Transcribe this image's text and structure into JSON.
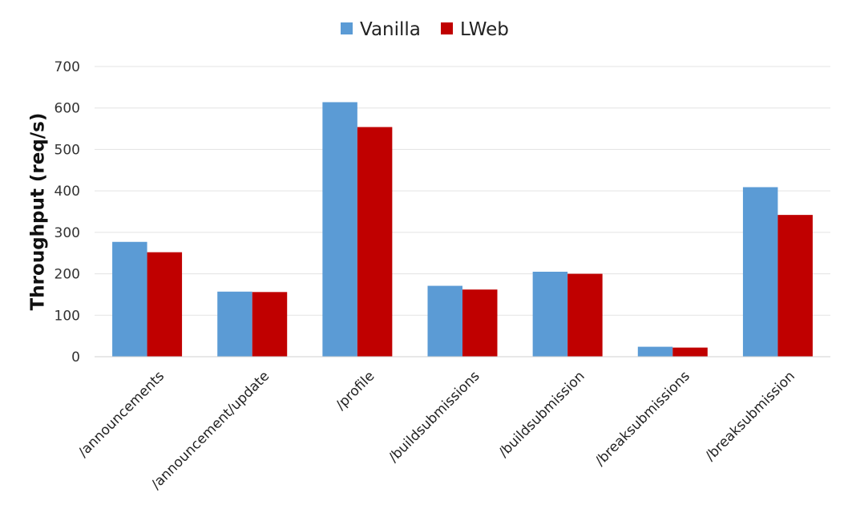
{
  "chart_data": {
    "type": "bar",
    "categories": [
      "/announcements",
      "/announcement/update",
      "/profile",
      "/buildsubmissions",
      "/buildsubmission",
      "/breaksubmissions",
      "/breaksubmission"
    ],
    "series": [
      {
        "name": "Vanilla",
        "color": "#5b9bd5",
        "values": [
          277,
          157,
          614,
          171,
          205,
          24,
          409
        ]
      },
      {
        "name": "LWeb",
        "color": "#c00000",
        "values": [
          252,
          156,
          554,
          162,
          200,
          22,
          342
        ]
      }
    ],
    "title": "",
    "xlabel": "",
    "ylabel": "Throughput (req/s)",
    "ylim": [
      0,
      700
    ],
    "yticks": [
      0,
      100,
      200,
      300,
      400,
      500,
      600,
      700
    ],
    "grid": true,
    "legend_position": "top-center"
  }
}
